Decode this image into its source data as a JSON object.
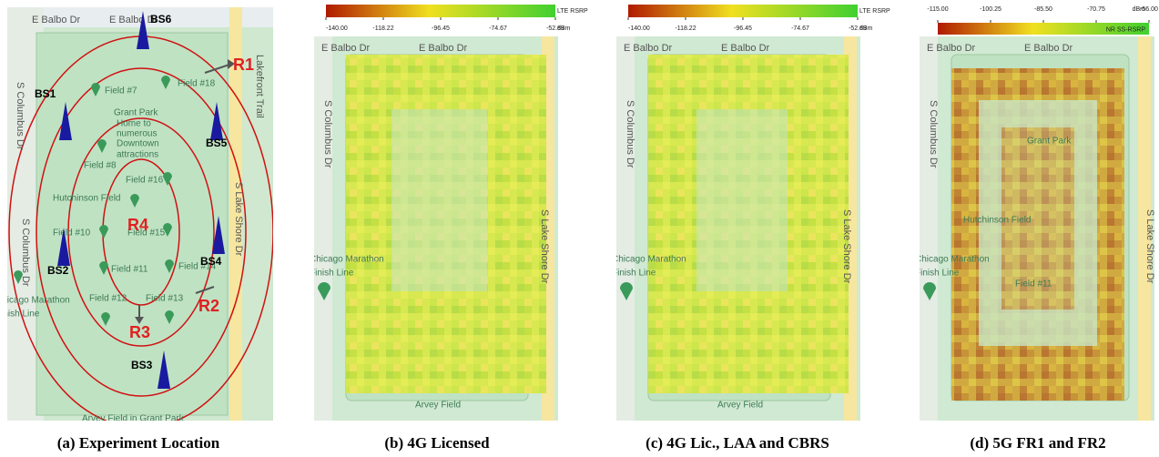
{
  "panels": [
    {
      "caption": "(a) Experiment Location",
      "streets": [
        "E Balbo Dr",
        "E Balbo Dr",
        "S Columbus Dr",
        "S Columbus Dr",
        "S Lake Shore Dr",
        "Lakefront Trail"
      ],
      "places": [
        "Field #7",
        "Field #18",
        "Grant Park",
        "Home to",
        "numerous",
        "Downtown",
        "attractions",
        "Field #8",
        "Field #16",
        "Hutchinson Field",
        "Field #10",
        "Field #15",
        "Field #11",
        "Field #14",
        "Chicago Marathon",
        "Finish Line",
        "Field #12",
        "Field #13",
        "Arvey Field in Grant Park"
      ],
      "base_stations": [
        "BS1",
        "BS2",
        "BS3",
        "BS4",
        "BS5",
        "BS6"
      ],
      "regions": [
        "R1",
        "R2",
        "R3",
        "R4"
      ]
    },
    {
      "caption": "(b) 4G Licensed",
      "colorbar": {
        "title": "LTE RSRP",
        "unit": "dBm",
        "ticks": [
          {
            "value": -140,
            "label": "-140.00"
          },
          {
            "value": -118.22,
            "label": "-118.22"
          },
          {
            "value": -96.45,
            "label": "-96.45"
          },
          {
            "value": -74.67,
            "label": "-74.67"
          },
          {
            "value": -52.89,
            "label": "-52.89"
          }
        ]
      },
      "streets": [
        "E Balbo Dr",
        "E Balbo Dr",
        "S Columbus Dr",
        "S Lake Shore Dr"
      ],
      "places": [
        "Chicago Marathon",
        "Finish Line",
        "Arvey Field"
      ]
    },
    {
      "caption": "(c) 4G Lic., LAA and CBRS",
      "colorbar": {
        "title": "LTE RSRP",
        "unit": "dBm",
        "ticks": [
          {
            "value": -140,
            "label": "-140.00"
          },
          {
            "value": -118.22,
            "label": "-118.22"
          },
          {
            "value": -96.45,
            "label": "-96.45"
          },
          {
            "value": -74.67,
            "label": "-74.67"
          },
          {
            "value": -52.89,
            "label": "-52.89"
          }
        ]
      },
      "streets": [
        "E Balbo Dr",
        "E Balbo Dr",
        "S Columbus Dr",
        "S Lake Shore Dr"
      ],
      "places": [
        "Chicago Marathon",
        "Finish Line",
        "Arvey Field"
      ]
    },
    {
      "caption": "(d) 5G FR1 and FR2",
      "colorbar": {
        "title": "NR SS-RSRP",
        "unit": "dBm",
        "ticks": [
          {
            "value": -115,
            "label": "-115.00"
          },
          {
            "value": -100.25,
            "label": "-100.25"
          },
          {
            "value": -85.5,
            "label": "-85.50"
          },
          {
            "value": -70.75,
            "label": "-70.75"
          },
          {
            "value": -56,
            "label": "-56.00"
          }
        ]
      },
      "streets": [
        "E Balbo Dr",
        "E Balbo Dr",
        "S Columbus Dr",
        "S Lake Shore Dr"
      ],
      "places": [
        "Chicago Marathon",
        "Finish Line",
        "Grant Park",
        "Hutchinson Field",
        "Field #11"
      ]
    }
  ]
}
